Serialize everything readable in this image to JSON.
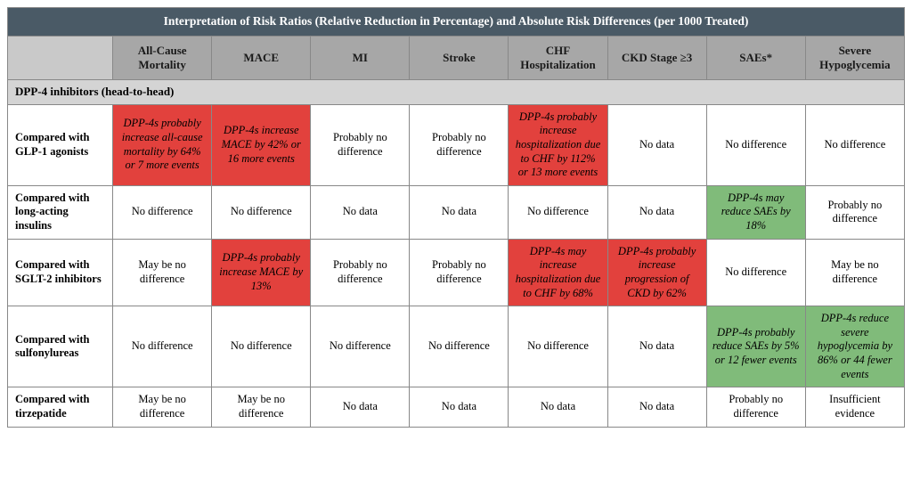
{
  "title": "Interpretation of Risk Ratios (Relative Reduction in Percentage) and Absolute Risk Differences (per 1000 Treated)",
  "columns": [
    "All-Cause Mortality",
    "MACE",
    "MI",
    "Stroke",
    "CHF Hospitalization",
    "CKD Stage ≥3",
    "SAEs*",
    "Severe Hypoglycemia"
  ],
  "section": "DPP-4 inhibitors (head-to-head)",
  "rows": [
    {
      "label": "Compared with GLP-1 agonists",
      "cells": [
        {
          "text": "DPP-4s probably increase all-cause mortality by 64% or 7 more events",
          "style": "red"
        },
        {
          "text": "DPP-4s increase MACE by 42% or 16 more events",
          "style": "red"
        },
        {
          "text": "Probably no difference",
          "style": "plain"
        },
        {
          "text": "Probably no difference",
          "style": "plain"
        },
        {
          "text": "DPP-4s probably increase hospitalization due to CHF by 112% or 13 more events",
          "style": "red"
        },
        {
          "text": "No data",
          "style": "plain"
        },
        {
          "text": "No difference",
          "style": "plain"
        },
        {
          "text": "No difference",
          "style": "plain"
        }
      ]
    },
    {
      "label": "Compared with long-acting insulins",
      "cells": [
        {
          "text": "No difference",
          "style": "plain"
        },
        {
          "text": "No difference",
          "style": "plain"
        },
        {
          "text": "No data",
          "style": "plain"
        },
        {
          "text": "No data",
          "style": "plain"
        },
        {
          "text": "No difference",
          "style": "plain"
        },
        {
          "text": "No data",
          "style": "plain"
        },
        {
          "text": "DPP-4s may reduce SAEs by 18%",
          "style": "green"
        },
        {
          "text": "Probably no difference",
          "style": "plain"
        }
      ]
    },
    {
      "label": "Compared with SGLT-2 inhibitors",
      "cells": [
        {
          "text": "May be no difference",
          "style": "plain"
        },
        {
          "text": "DPP-4s probably increase MACE by 13%",
          "style": "red"
        },
        {
          "text": "Probably no difference",
          "style": "plain"
        },
        {
          "text": "Probably no difference",
          "style": "plain"
        },
        {
          "text": "DPP-4s may increase hospitalization due to CHF by 68%",
          "style": "red"
        },
        {
          "text": "DPP-4s probably increase progression of CKD by 62%",
          "style": "red"
        },
        {
          "text": "No difference",
          "style": "plain"
        },
        {
          "text": "May be no difference",
          "style": "plain"
        }
      ]
    },
    {
      "label": "Compared with sulfonylureas",
      "cells": [
        {
          "text": "No difference",
          "style": "plain"
        },
        {
          "text": "No difference",
          "style": "plain"
        },
        {
          "text": "No difference",
          "style": "plain"
        },
        {
          "text": "No difference",
          "style": "plain"
        },
        {
          "text": "No difference",
          "style": "plain"
        },
        {
          "text": "No data",
          "style": "plain"
        },
        {
          "text": "DPP-4s probably reduce SAEs by 5% or 12 fewer events",
          "style": "green"
        },
        {
          "text": "DPP-4s reduce severe hypoglycemia by 86% or 44 fewer events",
          "style": "green"
        }
      ]
    },
    {
      "label": "Compared with tirzepatide",
      "cells": [
        {
          "text": "May be no difference",
          "style": "plain"
        },
        {
          "text": "May be no difference",
          "style": "plain"
        },
        {
          "text": "No data",
          "style": "plain"
        },
        {
          "text": "No data",
          "style": "plain"
        },
        {
          "text": "No data",
          "style": "plain"
        },
        {
          "text": "No data",
          "style": "plain"
        },
        {
          "text": "Probably no difference",
          "style": "plain"
        },
        {
          "text": "Insufficient evidence",
          "style": "plain"
        }
      ]
    }
  ],
  "colors": {
    "title_bg": "#4a5a66",
    "header_bg": "#a7a7a7",
    "section_bg": "#d4d4d4",
    "red": "#e2413d",
    "green": "#80bb7a",
    "border": "#888888"
  }
}
